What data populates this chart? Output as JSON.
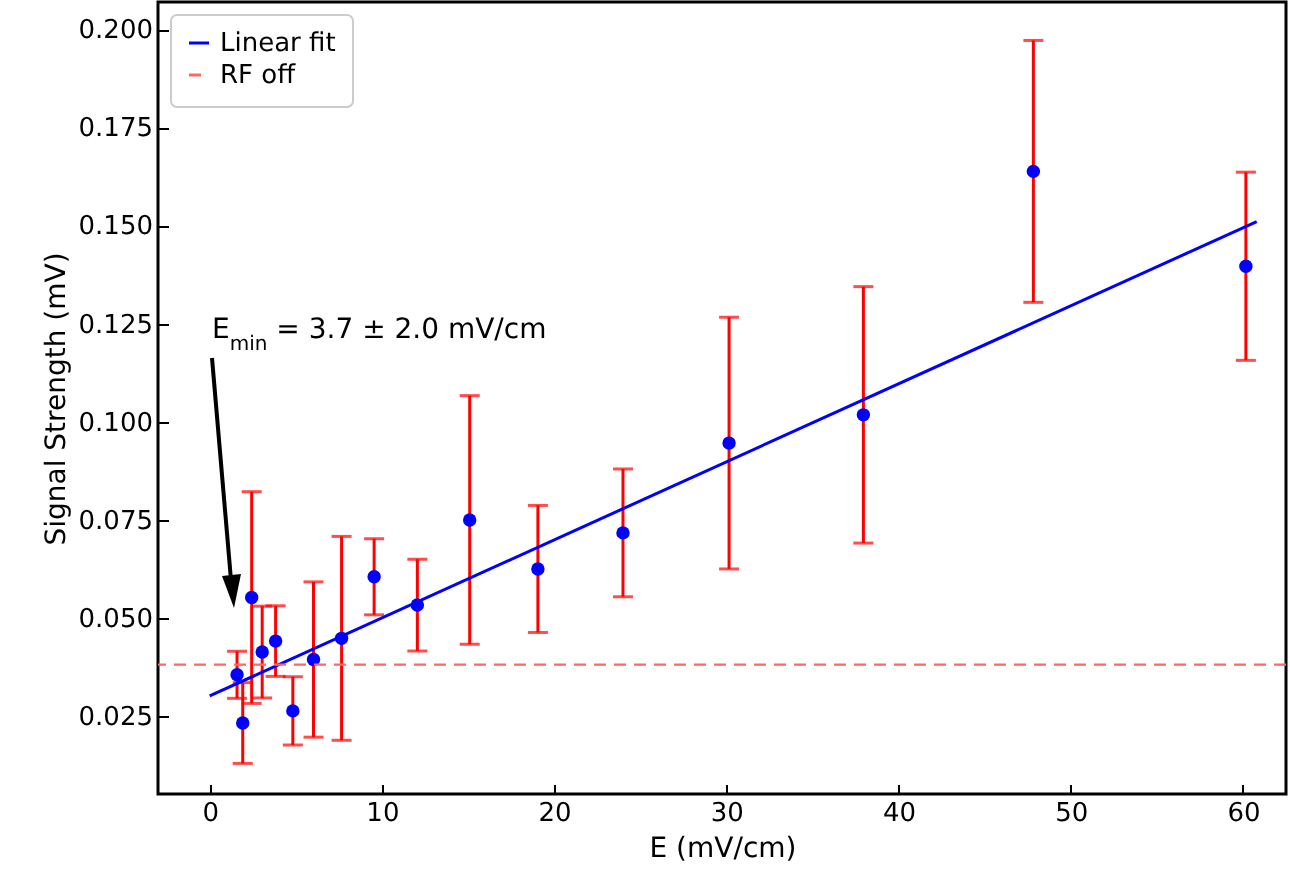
{
  "chart_data": {
    "type": "scatter",
    "xlabel": "E (mV/cm)",
    "ylabel": "Signal Strength (mV)",
    "x": [
      1.59,
      1.92,
      2.44,
      3.05,
      3.83,
      4.83,
      6.03,
      7.66,
      9.55,
      12.06,
      15.1,
      19.06,
      24.0,
      30.16,
      37.96,
      47.83,
      60.17
    ],
    "series": [
      {
        "color": "#0000ff",
        "values": [
          0.0354,
          0.0231,
          0.0551,
          0.0412,
          0.044,
          0.0262,
          0.0393,
          0.0447,
          0.0604,
          0.0532,
          0.0749,
          0.0624,
          0.0716,
          0.0945,
          0.1017,
          0.1638,
          0.1396
        ],
        "errors": [
          0.006,
          0.0103,
          0.027,
          0.0117,
          0.009,
          0.0087,
          0.0198,
          0.026,
          0.0097,
          0.0117,
          0.0317,
          0.0162,
          0.0163,
          0.0321,
          0.0327,
          0.0334,
          0.024
        ]
      },
      {
        "name": "Linear fit",
        "type": "line",
        "color": "#0000ff",
        "x": [
          0,
          60.8
        ],
        "values": [
          0.03,
          0.151
        ],
        "line_style": "solid",
        "marker": "none"
      }
    ],
    "ref_lines": [
      {
        "axis": "y",
        "value": 0.038,
        "label": "RF off",
        "color": "#ff6666",
        "line_style": "dashed"
      }
    ],
    "annotations": [
      "E$_{min}$ = 3.7 ± 2.0 mV/cm"
    ],
    "xlim": [
      -3,
      62.5
    ],
    "ylim": [
      0.005,
      0.207
    ],
    "xticks": [
      0,
      10,
      20,
      30,
      40,
      50,
      60
    ],
    "yticks": [
      0.025,
      {
        "value": 0.05,
        "label": "0.050"
      },
      0.075,
      {
        "value": 0.1,
        "label": "0.100"
      },
      0.125,
      {
        "value": 0.15,
        "label": "0.150"
      },
      0.175,
      {
        "value": 0.2,
        "label": "0.200"
      }
    ],
    "marker": "circle",
    "grid": false,
    "legend": "top left"
  }
}
